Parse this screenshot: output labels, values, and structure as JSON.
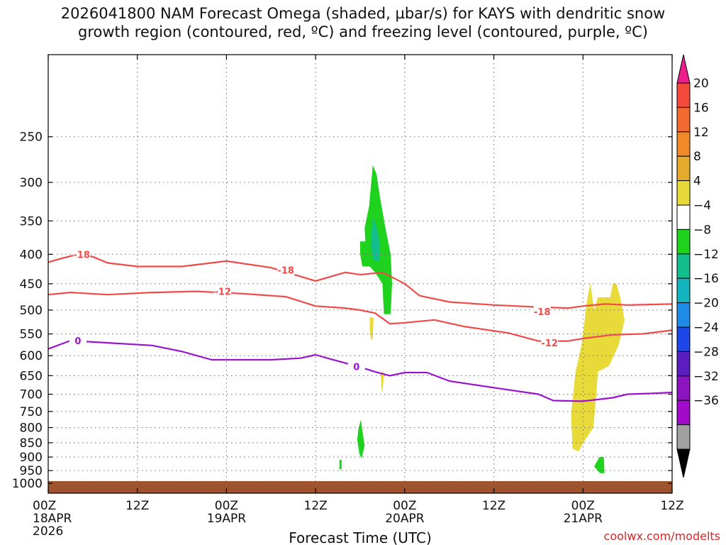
{
  "chart_data": {
    "type": "contour",
    "title_lines": [
      "2026041800 NAM Forecast Omega (shaded, µbar/s) for KAYS with dendritic snow",
      "growth region (contoured, red, ºC) and freezing level (contoured, purple, ºC)"
    ],
    "xlabel": "Forecast Time (UTC)",
    "credit": "coolwx.com/modelts",
    "x_range_hours": [
      0,
      84
    ],
    "y_range_hpa": [
      1040,
      180
    ],
    "x_ticks": [
      {
        "h": 0,
        "lines": [
          "00Z",
          "18APR",
          "2026"
        ]
      },
      {
        "h": 12,
        "lines": [
          "12Z"
        ]
      },
      {
        "h": 24,
        "lines": [
          "00Z",
          "19APR"
        ]
      },
      {
        "h": 36,
        "lines": [
          "12Z"
        ]
      },
      {
        "h": 48,
        "lines": [
          "00Z",
          "20APR"
        ]
      },
      {
        "h": 60,
        "lines": [
          "12Z"
        ]
      },
      {
        "h": 72,
        "lines": [
          "00Z",
          "21APR"
        ]
      },
      {
        "h": 84,
        "lines": [
          "12Z"
        ]
      }
    ],
    "y_ticks": [
      250,
      300,
      350,
      400,
      450,
      500,
      550,
      600,
      650,
      700,
      750,
      800,
      850,
      900,
      950,
      1000
    ],
    "gridlines": true,
    "colorbar": {
      "labels": [
        "20",
        "16",
        "12",
        "8",
        "4",
        "−4",
        "−8",
        "−12",
        "−16",
        "−20",
        "−24",
        "−28",
        "−32",
        "−36"
      ],
      "colors": [
        "#ee1e8c",
        "#f44a3c",
        "#f26a30",
        "#f08a28",
        "#e4aa2c",
        "#e8da38",
        "#ffffff",
        "#1ed21e",
        "#14be8c",
        "#14b4be",
        "#1e8ce6",
        "#1e46e6",
        "#5a1ebe",
        "#8c14be",
        "#a00ac8",
        "#a0a0a0",
        "#000000"
      ]
    },
    "contours": [
      {
        "name": "-18",
        "color": "#f04a4a",
        "points": [
          [
            0,
            413
          ],
          [
            2,
            406
          ],
          [
            4,
            400
          ],
          [
            6,
            404
          ],
          [
            8,
            414
          ],
          [
            12,
            420
          ],
          [
            18,
            420
          ],
          [
            24,
            411
          ],
          [
            30,
            422
          ],
          [
            36,
            445
          ],
          [
            40,
            430
          ],
          [
            42,
            434
          ],
          [
            45,
            430
          ],
          [
            48,
            450
          ],
          [
            50,
            472
          ],
          [
            54,
            484
          ],
          [
            60,
            490
          ],
          [
            66,
            494
          ],
          [
            70,
            496
          ],
          [
            72,
            492
          ],
          [
            75,
            488
          ],
          [
            78,
            490
          ],
          [
            84,
            488
          ]
        ],
        "labels": [
          {
            "h": 4.5,
            "p": 400
          },
          {
            "h": 32,
            "p": 426
          },
          {
            "h": 66.5,
            "p": 503
          }
        ]
      },
      {
        "name": "-12",
        "color": "#f04a4a",
        "points": [
          [
            0,
            470
          ],
          [
            3,
            466
          ],
          [
            8,
            470
          ],
          [
            14,
            466
          ],
          [
            20,
            464
          ],
          [
            26,
            468
          ],
          [
            32,
            474
          ],
          [
            36,
            492
          ],
          [
            40,
            496
          ],
          [
            42,
            500
          ],
          [
            44,
            506
          ],
          [
            46,
            528
          ],
          [
            48,
            526
          ],
          [
            52,
            520
          ],
          [
            56,
            534
          ],
          [
            62,
            548
          ],
          [
            66,
            566
          ],
          [
            70,
            566
          ],
          [
            72,
            560
          ],
          [
            76,
            552
          ],
          [
            80,
            550
          ],
          [
            84,
            542
          ]
        ],
        "labels": [
          {
            "h": 23.5,
            "p": 464
          },
          {
            "h": 67.5,
            "p": 570
          }
        ]
      },
      {
        "name": "0",
        "color": "#9a14d0",
        "points": [
          [
            0,
            584
          ],
          [
            3,
            565
          ],
          [
            8,
            570
          ],
          [
            14,
            576
          ],
          [
            18,
            590
          ],
          [
            22,
            610
          ],
          [
            30,
            610
          ],
          [
            34,
            606
          ],
          [
            36,
            598
          ],
          [
            38,
            608
          ],
          [
            42,
            628
          ],
          [
            44,
            640
          ],
          [
            46,
            650
          ],
          [
            48,
            642
          ],
          [
            51,
            642
          ],
          [
            54,
            664
          ],
          [
            60,
            682
          ],
          [
            66,
            700
          ],
          [
            68,
            718
          ],
          [
            72,
            720
          ],
          [
            76,
            710
          ],
          [
            78,
            700
          ],
          [
            81,
            698
          ],
          [
            84,
            695
          ]
        ],
        "labels": [
          {
            "h": 4.0,
            "p": 565
          },
          {
            "h": 41.5,
            "p": 627
          }
        ]
      }
    ],
    "shaded_regions": [
      {
        "value_bin": "-4 to -8",
        "color": "#1ed21e",
        "points": [
          [
            42.0,
            380
          ],
          [
            42.7,
            380
          ],
          [
            42.6,
            360
          ],
          [
            43.2,
            330
          ],
          [
            43.7,
            280
          ],
          [
            44.2,
            290
          ],
          [
            44.7,
            320
          ],
          [
            45.4,
            360
          ],
          [
            46.1,
            400
          ],
          [
            46.3,
            450
          ],
          [
            46.1,
            508
          ],
          [
            45.2,
            508
          ],
          [
            45.0,
            450
          ],
          [
            44.0,
            430
          ],
          [
            43.3,
            420
          ],
          [
            42.3,
            420
          ],
          [
            42.0,
            400
          ]
        ]
      },
      {
        "value_bin": "-8 to -12",
        "color": "#14be8c",
        "points": [
          [
            43.7,
            345
          ],
          [
            44.2,
            358
          ],
          [
            44.6,
            380
          ],
          [
            44.6,
            410
          ],
          [
            43.8,
            410
          ],
          [
            43.4,
            385
          ]
        ]
      },
      {
        "value_bin": "-4 to -8",
        "color": "#1ed21e",
        "points": [
          [
            41.8,
            800
          ],
          [
            42.1,
            775
          ],
          [
            42.3,
            810
          ],
          [
            42.6,
            860
          ],
          [
            42.2,
            905
          ],
          [
            41.9,
            890
          ],
          [
            41.6,
            840
          ]
        ]
      },
      {
        "value_bin": "-4 to -8",
        "color": "#1ed21e",
        "points": [
          [
            39.2,
            910
          ],
          [
            39.5,
            910
          ],
          [
            39.5,
            945
          ],
          [
            39.2,
            945
          ]
        ]
      },
      {
        "value_bin": "-4 to -8",
        "color": "#1ed21e",
        "points": [
          [
            74.2,
            900
          ],
          [
            74.8,
            900
          ],
          [
            74.9,
            960
          ],
          [
            74.3,
            960
          ],
          [
            73.5,
            935
          ]
        ]
      },
      {
        "value_bin": "4 to 8",
        "color": "#e8da38",
        "points": [
          [
            43.3,
            515
          ],
          [
            43.8,
            515
          ],
          [
            43.7,
            560
          ],
          [
            43.5,
            565
          ],
          [
            43.3,
            545
          ]
        ]
      },
      {
        "value_bin": "4 to 8",
        "color": "#e8da38",
        "points": [
          [
            44.8,
            650
          ],
          [
            45.0,
            635
          ],
          [
            45.2,
            650
          ],
          [
            45.0,
            695
          ],
          [
            44.9,
            690
          ]
        ]
      },
      {
        "value_bin": "4 to 8",
        "color": "#e8da38",
        "points": [
          [
            71.0,
            640
          ],
          [
            71.8,
            575
          ],
          [
            72.6,
            475
          ],
          [
            73.0,
            450
          ],
          [
            73.5,
            500
          ],
          [
            74.0,
            475
          ],
          [
            75.7,
            475
          ],
          [
            76.0,
            450
          ],
          [
            76.5,
            450
          ],
          [
            77.0,
            475
          ],
          [
            77.6,
            520
          ],
          [
            76.8,
            575
          ],
          [
            75.5,
            625
          ],
          [
            74.0,
            640
          ],
          [
            73.8,
            700
          ],
          [
            73.4,
            800
          ],
          [
            72.3,
            840
          ],
          [
            71.4,
            880
          ],
          [
            70.6,
            870
          ],
          [
            70.4,
            760
          ]
        ]
      }
    ]
  }
}
